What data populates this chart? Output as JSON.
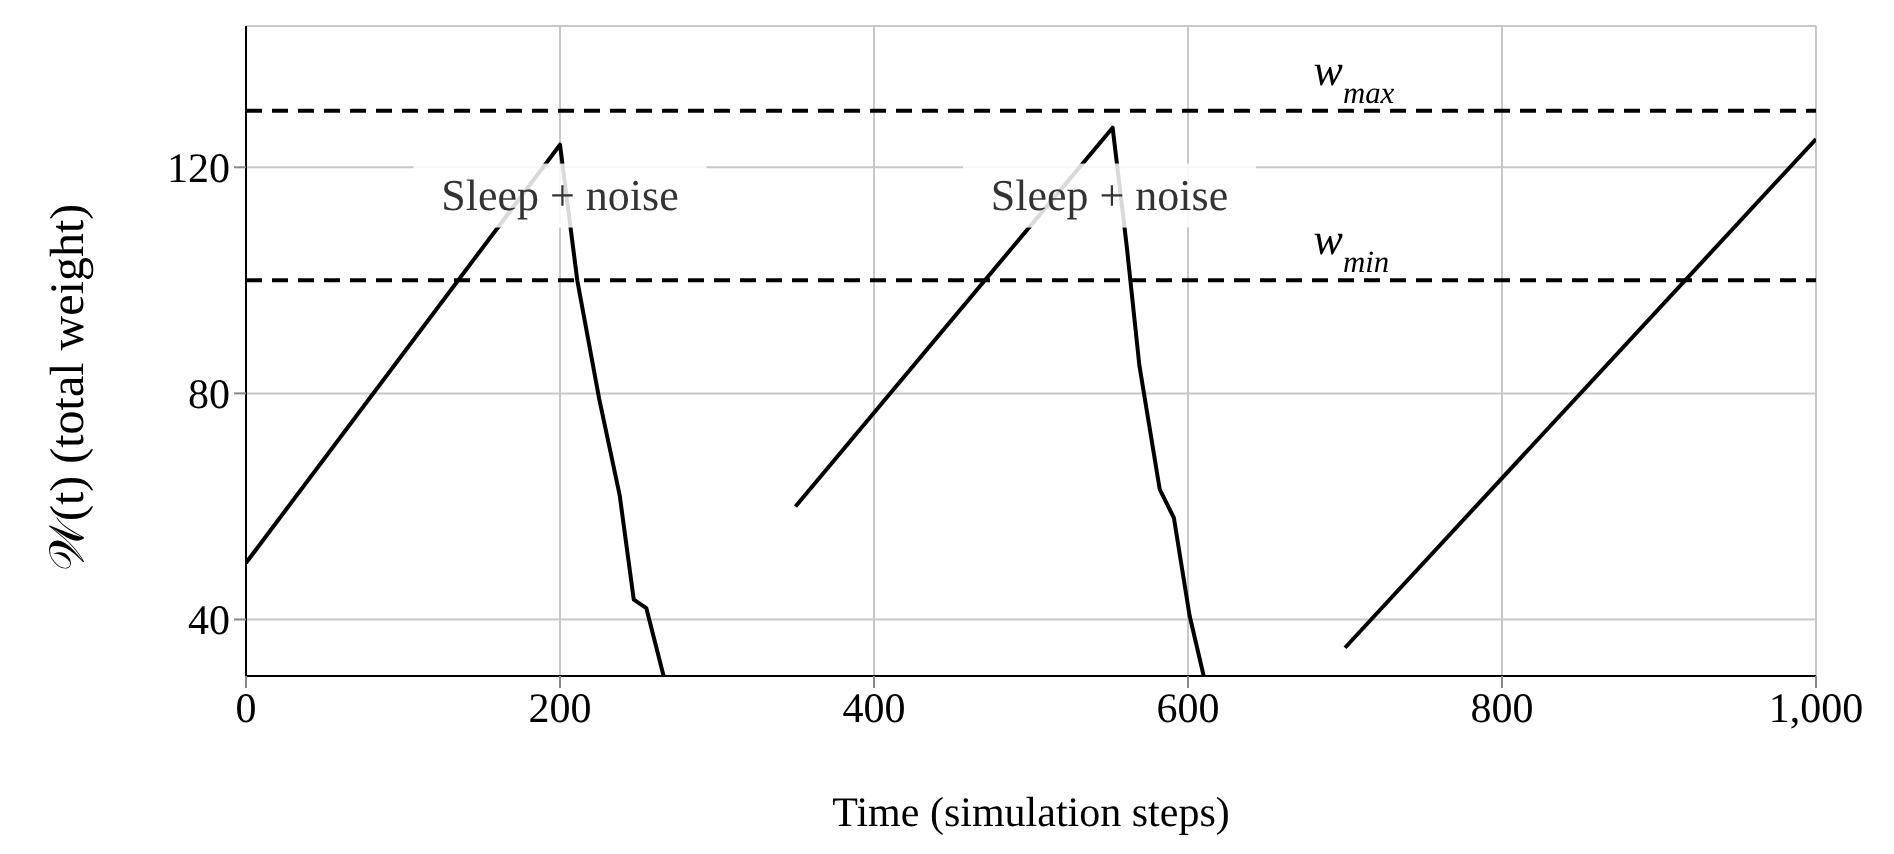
{
  "chart_data": {
    "type": "line",
    "xlabel": "Time (simulation steps)",
    "ylabel": "𝒲(t) (total weight)",
    "xlim": [
      0,
      1000
    ],
    "xticks": [
      0,
      200,
      400,
      600,
      800,
      {
        "value": 1000,
        "label": "1,000"
      }
    ],
    "ylim": [
      30,
      145
    ],
    "yticks": [
      40,
      80,
      120
    ],
    "grid": true,
    "marker": "none",
    "line_style": "solid",
    "series": [
      {
        "color": "#000000",
        "x": [
          0,
          200,
          211,
          225,
          238,
          247,
          255,
          266
        ],
        "values": [
          50,
          124,
          100,
          79,
          62,
          43.5,
          42,
          30
        ]
      },
      {
        "color": "#000000",
        "x": [
          350,
          552,
          561,
          569,
          582,
          591,
          601,
          610
        ],
        "values": [
          60,
          127,
          106,
          85,
          63,
          58,
          40.7,
          30
        ]
      },
      {
        "color": "#000000",
        "x": [
          700,
          1000
        ],
        "values": [
          35,
          125
        ]
      }
    ],
    "ref_lines": [
      {
        "axis": "y",
        "value": 130,
        "label": "w$_{max}$",
        "line_style": "dashed",
        "color": "#000000"
      },
      {
        "axis": "y",
        "value": 100,
        "label": "w$_{min}$",
        "line_style": "dashed",
        "color": "#000000"
      }
    ],
    "annotations": [
      {
        "text": "Sleep + noise",
        "x": 200,
        "y": 115
      },
      {
        "text": "Sleep + noise",
        "x": 550,
        "y": 115
      }
    ]
  }
}
